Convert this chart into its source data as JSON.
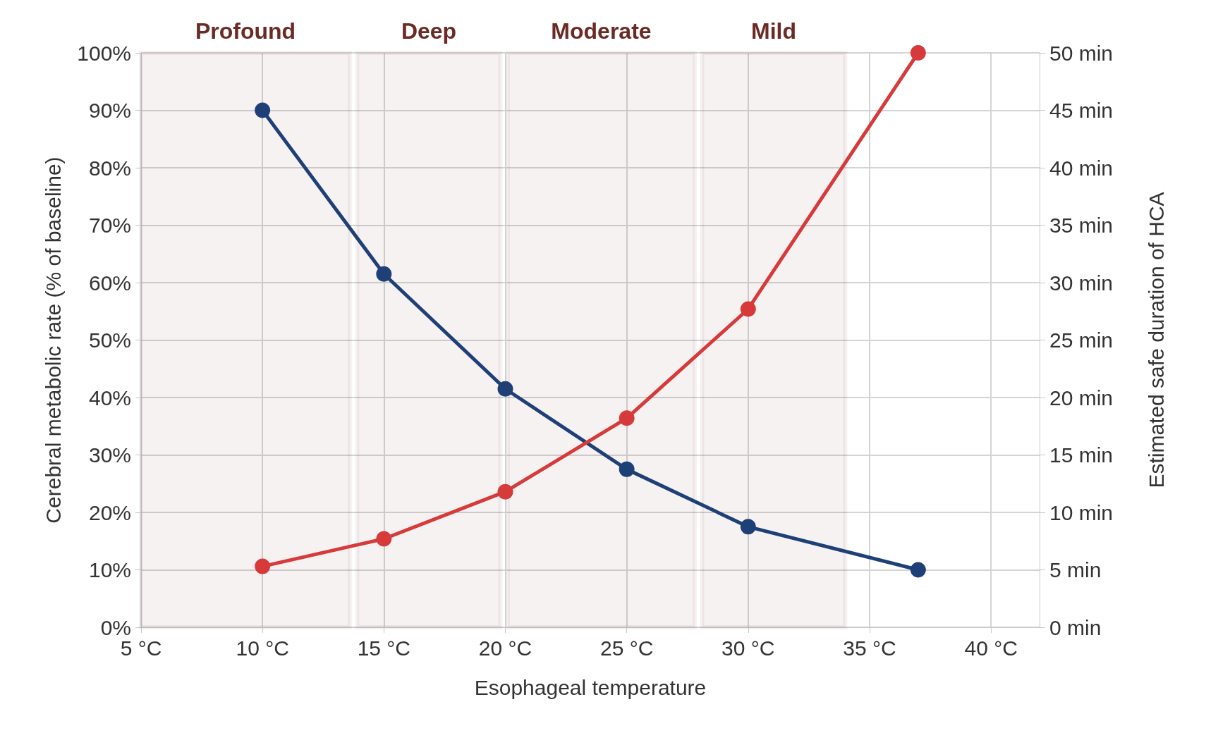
{
  "chart_data": {
    "type": "line",
    "xlabel": "Esophageal temperature",
    "ylabel": "Cerebral metabolic rate (% of baseline)",
    "y2label": "Estimated safe duration of HCA",
    "series": [
      {
        "color": "#1f3f77",
        "x": [
          10,
          15,
          20,
          25,
          30,
          37
        ],
        "values": [
          90,
          61.5,
          41.5,
          27.5,
          17.5,
          10
        ]
      },
      {
        "color": "#d63a3a",
        "axis": "y2",
        "x": [
          10,
          15,
          20,
          25,
          30,
          37
        ],
        "values": [
          5.3,
          7.7,
          11.8,
          18.2,
          27.7,
          50
        ]
      }
    ],
    "xlim": [
      5,
      42
    ],
    "xticks": [
      {
        "value": 5,
        "label": "5 °C"
      },
      {
        "value": 10,
        "label": "10 °C"
      },
      {
        "value": 15,
        "label": "15 °C"
      },
      {
        "value": 20,
        "label": "20 °C"
      },
      {
        "value": 25,
        "label": "25 °C"
      },
      {
        "value": 30,
        "label": "30 °C"
      },
      {
        "value": 35,
        "label": "35 °C"
      },
      {
        "value": 40,
        "label": "40 °C"
      }
    ],
    "ylim": [
      0,
      100
    ],
    "yticks": [
      {
        "value": 0,
        "label": "0%"
      },
      {
        "value": 10,
        "label": "10%"
      },
      {
        "value": 20,
        "label": "20%"
      },
      {
        "value": 30,
        "label": "30%"
      },
      {
        "value": 40,
        "label": "40%"
      },
      {
        "value": 50,
        "label": "50%"
      },
      {
        "value": 60,
        "label": "60%"
      },
      {
        "value": 70,
        "label": "70%"
      },
      {
        "value": 80,
        "label": "80%"
      },
      {
        "value": 90,
        "label": "90%"
      },
      {
        "value": 100,
        "label": "100%"
      }
    ],
    "y2lim": [
      0,
      50
    ],
    "y2ticks": [
      {
        "value": 0,
        "label": "0 min"
      },
      {
        "value": 5,
        "label": "5 min"
      },
      {
        "value": 10,
        "label": "10 min"
      },
      {
        "value": 15,
        "label": "15 min"
      },
      {
        "value": 20,
        "label": "20 min"
      },
      {
        "value": 25,
        "label": "25 min"
      },
      {
        "value": 30,
        "label": "30 min"
      },
      {
        "value": 35,
        "label": "35 min"
      },
      {
        "value": 40,
        "label": "40 min"
      },
      {
        "value": 45,
        "label": "45 min"
      },
      {
        "value": 50,
        "label": "50 min"
      }
    ],
    "bands": [
      {
        "axis": "x",
        "from": 4.7,
        "to": 13.6,
        "label": "Profound",
        "color": "#6b2a24"
      },
      {
        "axis": "x",
        "from": 13.9,
        "to": 19.8,
        "label": "Deep",
        "color": "#6b2a24"
      },
      {
        "axis": "x",
        "from": 20.1,
        "to": 27.8,
        "label": "Moderate",
        "color": "#6b2a24"
      },
      {
        "axis": "x",
        "from": 28.1,
        "to": 34,
        "label": "Mild",
        "color": "#6b2a24"
      }
    ],
    "grid": true,
    "marker": "circle",
    "line_style": "solid"
  }
}
